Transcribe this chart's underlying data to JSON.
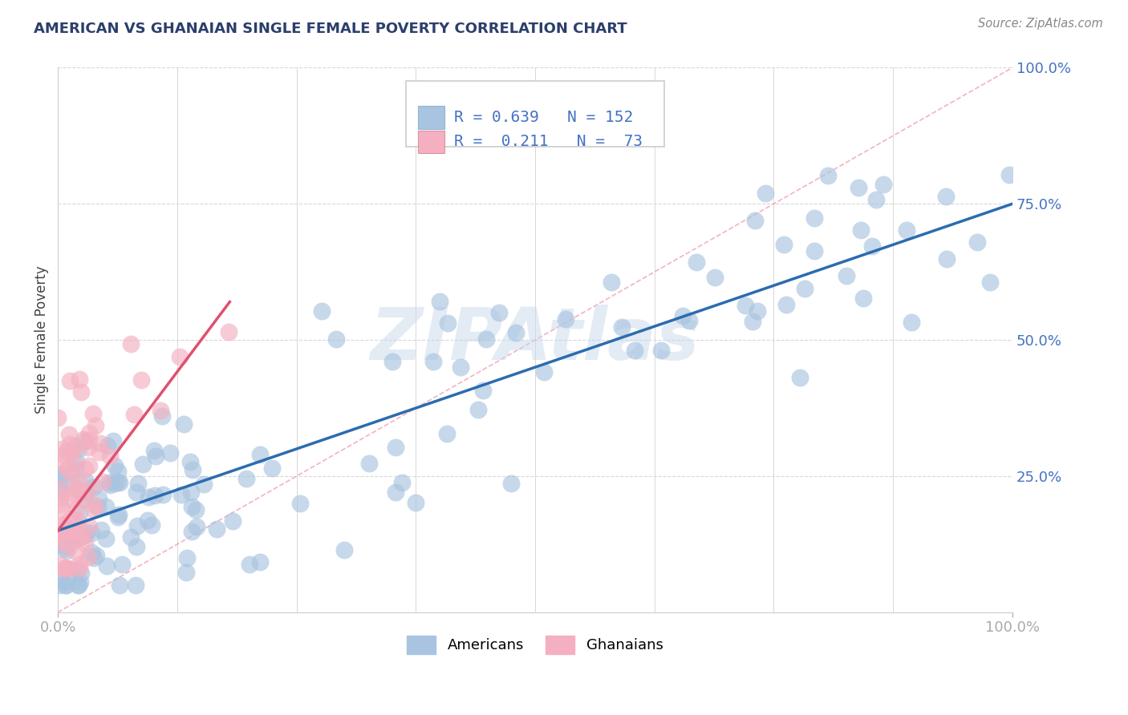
{
  "title": "AMERICAN VS GHANAIAN SINGLE FEMALE POVERTY CORRELATION CHART",
  "source": "Source: ZipAtlas.com",
  "ylabel": "Single Female Poverty",
  "xlim": [
    0,
    1
  ],
  "ylim": [
    0,
    1
  ],
  "xtick_labels": [
    "0.0%",
    "100.0%"
  ],
  "ytick_labels": [
    "25.0%",
    "50.0%",
    "75.0%",
    "100.0%"
  ],
  "ytick_positions": [
    0.25,
    0.5,
    0.75,
    1.0
  ],
  "legend_r_american": "0.639",
  "legend_n_american": "152",
  "legend_r_ghanaian": "0.211",
  "legend_n_ghanaian": " 73",
  "american_color": "#a8c4e0",
  "ghanaian_color": "#f4b0c0",
  "regression_american_color": "#2b6cb0",
  "regression_ghanaian_color": "#e05070",
  "diagonal_color": "#f0a0b0",
  "text_blue": "#4472c4",
  "title_color": "#2c3e6b",
  "background_color": "#ffffff",
  "watermark_color": "#c8d8ea",
  "legend_text_color": "#4472c4",
  "seed": 99
}
